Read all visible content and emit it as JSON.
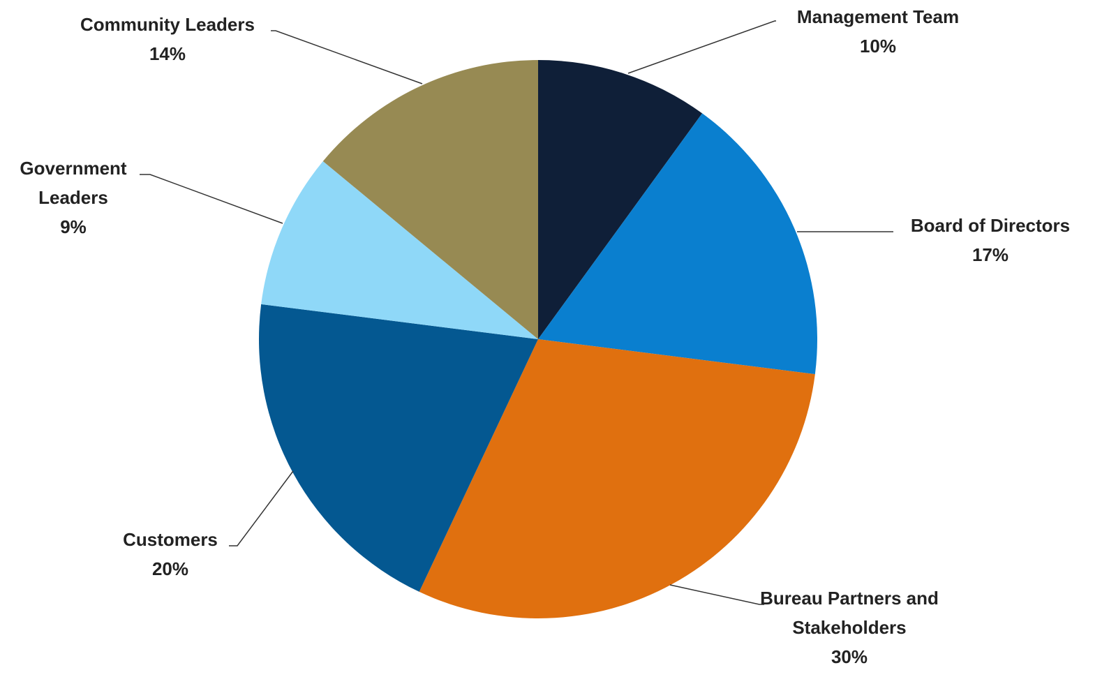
{
  "chart_data": {
    "type": "pie",
    "categories": [
      "Management Team",
      "Board of Directors",
      "Bureau Partners and Stakeholders",
      "Customers",
      "Government Leaders",
      "Community Leaders"
    ],
    "values": [
      10,
      17,
      30,
      20,
      9,
      14
    ],
    "value_labels": [
      "10%",
      "17%",
      "30%",
      "20%",
      "9%",
      "14%"
    ],
    "colors": [
      "#0f1f38",
      "#0a7fcf",
      "#e0700f",
      "#045891",
      "#8fd8f8",
      "#978a53"
    ]
  }
}
